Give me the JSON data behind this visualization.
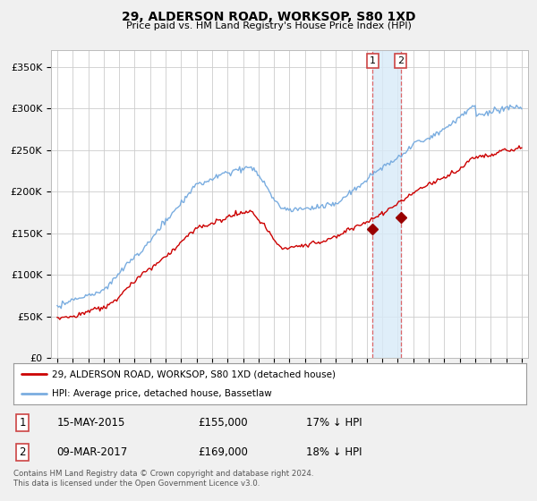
{
  "title": "29, ALDERSON ROAD, WORKSOP, S80 1XD",
  "subtitle": "Price paid vs. HM Land Registry's House Price Index (HPI)",
  "ylabel_ticks": [
    "£0",
    "£50K",
    "£100K",
    "£150K",
    "£200K",
    "£250K",
    "£300K",
    "£350K"
  ],
  "ytick_values": [
    0,
    50000,
    100000,
    150000,
    200000,
    250000,
    300000,
    350000
  ],
  "ylim": [
    0,
    370000
  ],
  "hpi_color": "#7aade0",
  "price_color": "#cc0000",
  "marker_color": "#990000",
  "shade_color": "#d8eaf8",
  "vline_color": "#dd4444",
  "legend_label_price": "29, ALDERSON ROAD, WORKSOP, S80 1XD (detached house)",
  "legend_label_hpi": "HPI: Average price, detached house, Bassetlaw",
  "sale1_date": "15-MAY-2015",
  "sale1_price": "£155,000",
  "sale1_pct": "17% ↓ HPI",
  "sale1_label": "1",
  "sale1_year": 2015.37,
  "sale1_value": 155000,
  "sale2_date": "09-MAR-2017",
  "sale2_price": "£169,000",
  "sale2_pct": "18% ↓ HPI",
  "sale2_label": "2",
  "sale2_year": 2017.19,
  "sale2_value": 169000,
  "footnote": "Contains HM Land Registry data © Crown copyright and database right 2024.\nThis data is licensed under the Open Government Licence v3.0.",
  "bg_color": "#f0f0f0",
  "plot_bg_color": "#ffffff",
  "legend_bg": "#ffffff",
  "grid_color": "#cccccc"
}
